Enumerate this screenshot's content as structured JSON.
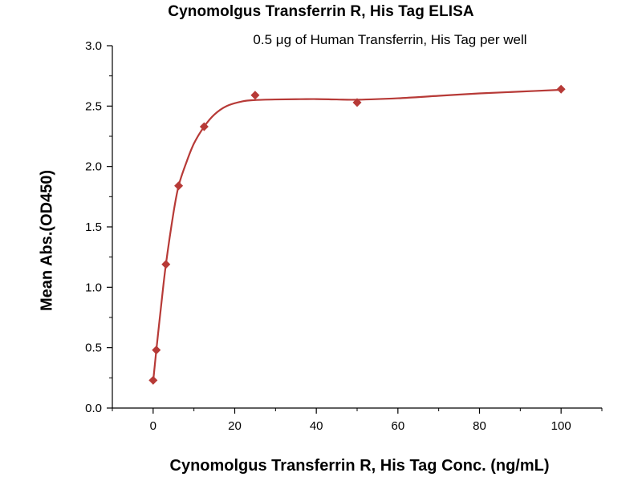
{
  "chart_data": {
    "type": "scatter",
    "title": "Cynomolgus Transferrin R, His Tag ELISA",
    "subtitle": "0.5 μg of Human Transferrin, His Tag per well",
    "xlabel": "Cynomolgus Transferrin R, His Tag Conc. (ng/mL)",
    "ylabel": "Mean Abs.(OD450)",
    "xlim": [
      -10,
      110
    ],
    "ylim": [
      0,
      3.0
    ],
    "x_ticks": [
      0,
      20,
      40,
      60,
      80,
      100
    ],
    "x_tick_labels": [
      "0",
      "20",
      "40",
      "60",
      "80",
      "100"
    ],
    "y_ticks": [
      0,
      0.5,
      1.0,
      1.5,
      2.0,
      2.5,
      3.0
    ],
    "y_tick_labels": [
      "0.0",
      "0.5",
      "1.0",
      "1.5",
      "2.0",
      "2.5",
      "3.0"
    ],
    "grid": false,
    "series": [
      {
        "x": [
          0,
          0.78,
          3.13,
          6.25,
          12.5,
          25,
          50,
          100
        ],
        "y": [
          0.23,
          0.48,
          1.19,
          1.84,
          2.33,
          2.59,
          2.53,
          2.64
        ],
        "marker": "diamond",
        "fit": "smooth-curve",
        "curve_x": [
          0,
          0.78,
          2,
          3.13,
          5,
          6.25,
          8,
          10,
          12.5,
          15,
          18,
          22,
          25,
          30,
          35,
          40,
          45,
          50,
          60,
          70,
          80,
          90,
          100
        ],
        "curve_y": [
          0.22,
          0.48,
          0.86,
          1.19,
          1.62,
          1.84,
          2.02,
          2.19,
          2.33,
          2.43,
          2.5,
          2.54,
          2.55,
          2.555,
          2.557,
          2.558,
          2.555,
          2.553,
          2.565,
          2.585,
          2.605,
          2.62,
          2.635
        ]
      }
    ],
    "colors": {
      "series": "#b73a37",
      "axis": "#000000"
    }
  }
}
